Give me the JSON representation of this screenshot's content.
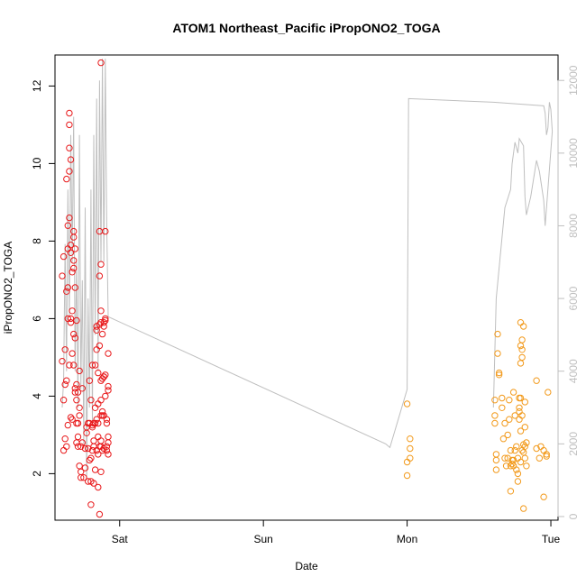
{
  "chart_data": {
    "type": "scatter",
    "title": "ATOM1 Northeast_Pacific iPropONO2_TOGA",
    "xlabel": "Date",
    "ylabel": "iPropONO2_TOGA",
    "x_ticks": [
      {
        "label": "Sat",
        "day": 0
      },
      {
        "label": "Sun",
        "day": 1
      },
      {
        "label": "Mon",
        "day": 2
      },
      {
        "label": "Tue",
        "day": 3
      }
    ],
    "xlim": [
      -0.45,
      3.05
    ],
    "ylim": [
      0.8,
      12.8
    ],
    "y_ticks": [
      2,
      4,
      6,
      8,
      10,
      12
    ],
    "y2lim": [
      -100,
      12700
    ],
    "y2_ticks": [
      0,
      2000,
      4000,
      6000,
      8000,
      10000,
      12000
    ],
    "grid": false,
    "colors": {
      "series_1": "#e8191b",
      "series_2": "#f29a1c",
      "altitude": "#bfbfbf"
    },
    "series": [
      {
        "points": [
          [
            -0.4,
            7.1
          ],
          [
            -0.4,
            4.9
          ],
          [
            -0.39,
            3.9
          ],
          [
            -0.39,
            2.6
          ],
          [
            -0.39,
            7.6
          ],
          [
            -0.38,
            2.9
          ],
          [
            -0.38,
            4.3
          ],
          [
            -0.38,
            5.2
          ],
          [
            -0.37,
            6.7
          ],
          [
            -0.37,
            9.6
          ],
          [
            -0.37,
            4.4
          ],
          [
            -0.37,
            2.7
          ],
          [
            -0.36,
            3.25
          ],
          [
            -0.36,
            6.8
          ],
          [
            -0.36,
            6.0
          ],
          [
            -0.36,
            8.4
          ],
          [
            -0.36,
            7.8
          ],
          [
            -0.35,
            4.8
          ],
          [
            -0.35,
            10.4
          ],
          [
            -0.35,
            9.8
          ],
          [
            -0.35,
            11.0
          ],
          [
            -0.35,
            11.3
          ],
          [
            -0.35,
            8.6
          ],
          [
            -0.34,
            7.7
          ],
          [
            -0.34,
            7.9
          ],
          [
            -0.34,
            10.1
          ],
          [
            -0.34,
            5.9
          ],
          [
            -0.34,
            6.0
          ],
          [
            -0.34,
            3.45
          ],
          [
            -0.33,
            3.4
          ],
          [
            -0.33,
            6.2
          ],
          [
            -0.33,
            5.1
          ],
          [
            -0.33,
            7.2
          ],
          [
            -0.32,
            7.5
          ],
          [
            -0.32,
            4.8
          ],
          [
            -0.32,
            5.6
          ],
          [
            -0.32,
            7.3
          ],
          [
            -0.32,
            8.1
          ],
          [
            -0.32,
            8.25
          ],
          [
            -0.31,
            7.8
          ],
          [
            -0.31,
            6.8
          ],
          [
            -0.31,
            5.5
          ],
          [
            -0.31,
            4.2
          ],
          [
            -0.31,
            4.1
          ],
          [
            -0.3,
            3.9
          ],
          [
            -0.3,
            3.3
          ],
          [
            -0.3,
            2.8
          ],
          [
            -0.3,
            5.95
          ],
          [
            -0.3,
            4.3
          ],
          [
            -0.29,
            2.7
          ],
          [
            -0.29,
            3.3
          ],
          [
            -0.29,
            4.1
          ],
          [
            -0.29,
            2.95
          ],
          [
            -0.28,
            2.2
          ],
          [
            -0.28,
            4.65
          ],
          [
            -0.28,
            3.7
          ],
          [
            -0.28,
            3.5
          ],
          [
            -0.27,
            2.7
          ],
          [
            -0.27,
            2.05
          ],
          [
            -0.27,
            1.9
          ],
          [
            -0.26,
            2.8
          ],
          [
            -0.26,
            4.2
          ],
          [
            -0.25,
            1.9
          ],
          [
            -0.24,
            2.65
          ],
          [
            -0.24,
            2.15
          ],
          [
            -0.23,
            3.2
          ],
          [
            -0.23,
            3.05
          ],
          [
            -0.22,
            2.65
          ],
          [
            -0.22,
            1.8
          ],
          [
            -0.22,
            3.3
          ],
          [
            -0.21,
            4.4
          ],
          [
            -0.21,
            2.35
          ],
          [
            -0.21,
            3.3
          ],
          [
            -0.2,
            1.2
          ],
          [
            -0.2,
            1.8
          ],
          [
            -0.2,
            2.4
          ],
          [
            -0.2,
            3.9
          ],
          [
            -0.19,
            3.2
          ],
          [
            -0.19,
            4.8
          ],
          [
            -0.19,
            2.6
          ],
          [
            -0.19,
            3.25
          ],
          [
            -0.18,
            2.85
          ],
          [
            -0.18,
            3.3
          ],
          [
            -0.18,
            1.75
          ],
          [
            -0.18,
            2.7
          ],
          [
            -0.17,
            3.3
          ],
          [
            -0.17,
            4.8
          ],
          [
            -0.17,
            2.1
          ],
          [
            -0.17,
            3.7
          ],
          [
            -0.16,
            5.8
          ],
          [
            -0.16,
            2.6
          ],
          [
            -0.16,
            3.4
          ],
          [
            -0.16,
            5.7
          ],
          [
            -0.16,
            5.2
          ],
          [
            -0.15,
            2.95
          ],
          [
            -0.15,
            3.8
          ],
          [
            -0.15,
            2.5
          ],
          [
            -0.15,
            1.65
          ],
          [
            -0.15,
            4.6
          ],
          [
            -0.15,
            3.3
          ],
          [
            -0.14,
            5.3
          ],
          [
            -0.14,
            2.7
          ],
          [
            -0.14,
            8.25
          ],
          [
            -0.14,
            7.1
          ],
          [
            -0.14,
            5.85
          ],
          [
            -0.14,
            0.95
          ],
          [
            -0.13,
            2.85
          ],
          [
            -0.13,
            3.9
          ],
          [
            -0.13,
            2.7
          ],
          [
            -0.13,
            4.4
          ],
          [
            -0.13,
            3.5
          ],
          [
            -0.13,
            2.05
          ],
          [
            -0.13,
            5.9
          ],
          [
            -0.13,
            7.4
          ],
          [
            -0.13,
            6.2
          ],
          [
            -0.13,
            12.6
          ],
          [
            -0.12,
            3.5
          ],
          [
            -0.12,
            4.45
          ],
          [
            -0.12,
            5.6
          ],
          [
            -0.12,
            3.6
          ],
          [
            -0.12,
            2.6
          ],
          [
            -0.11,
            4.5
          ],
          [
            -0.11,
            4.5
          ],
          [
            -0.11,
            5.8
          ],
          [
            -0.11,
            2.65
          ],
          [
            -0.11,
            3.5
          ],
          [
            -0.11,
            5.9
          ],
          [
            -0.1,
            8.25
          ],
          [
            -0.1,
            6.0
          ],
          [
            -0.1,
            4.0
          ],
          [
            -0.1,
            5.95
          ],
          [
            -0.1,
            4.55
          ],
          [
            -0.09,
            2.6
          ],
          [
            -0.09,
            3.4
          ],
          [
            -0.09,
            2.7
          ],
          [
            -0.09,
            3.3
          ],
          [
            -0.08,
            2.8
          ],
          [
            -0.08,
            2.95
          ],
          [
            -0.08,
            4.25
          ],
          [
            -0.08,
            2.5
          ],
          [
            -0.08,
            4.15
          ],
          [
            -0.08,
            5.1
          ]
        ]
      },
      {
        "points": [
          [
            2.0,
            3.8
          ],
          [
            2.0,
            2.3
          ],
          [
            2.0,
            1.95
          ],
          [
            2.02,
            2.4
          ],
          [
            2.02,
            2.65
          ],
          [
            2.02,
            2.9
          ],
          [
            2.61,
            3.9
          ],
          [
            2.61,
            3.5
          ],
          [
            2.61,
            3.3
          ],
          [
            2.62,
            2.5
          ],
          [
            2.62,
            2.35
          ],
          [
            2.62,
            2.1
          ],
          [
            2.63,
            5.6
          ],
          [
            2.63,
            5.1
          ],
          [
            2.64,
            4.6
          ],
          [
            2.64,
            4.55
          ],
          [
            2.66,
            3.7
          ],
          [
            2.66,
            3.95
          ],
          [
            2.67,
            2.9
          ],
          [
            2.68,
            3.3
          ],
          [
            2.68,
            2.4
          ],
          [
            2.69,
            2.2
          ],
          [
            2.7,
            3.0
          ],
          [
            2.7,
            2.4
          ],
          [
            2.71,
            3.4
          ],
          [
            2.71,
            3.9
          ],
          [
            2.72,
            2.6
          ],
          [
            2.72,
            2.2
          ],
          [
            2.72,
            1.55
          ],
          [
            2.73,
            2.25
          ],
          [
            2.73,
            2.35
          ],
          [
            2.74,
            2.35
          ],
          [
            2.74,
            4.1
          ],
          [
            2.74,
            2.2
          ],
          [
            2.75,
            3.5
          ],
          [
            2.75,
            2.6
          ],
          [
            2.76,
            2.1
          ],
          [
            2.76,
            2.7
          ],
          [
            2.77,
            2.0
          ],
          [
            2.77,
            2.4
          ],
          [
            2.77,
            1.8
          ],
          [
            2.78,
            3.95
          ],
          [
            2.78,
            3.7
          ],
          [
            2.78,
            3.6
          ],
          [
            2.78,
            3.4
          ],
          [
            2.79,
            2.3
          ],
          [
            2.79,
            3.1
          ],
          [
            2.79,
            3.95
          ],
          [
            2.79,
            5.3
          ],
          [
            2.79,
            5.9
          ],
          [
            2.79,
            4.85
          ],
          [
            2.8,
            5.0
          ],
          [
            2.8,
            5.45
          ],
          [
            2.8,
            5.2
          ],
          [
            2.8,
            2.6
          ],
          [
            2.8,
            3.5
          ],
          [
            2.81,
            2.75
          ],
          [
            2.81,
            1.1
          ],
          [
            2.81,
            2.55
          ],
          [
            2.81,
            5.8
          ],
          [
            2.82,
            3.2
          ],
          [
            2.82,
            3.85
          ],
          [
            2.82,
            2.7
          ],
          [
            2.82,
            2.4
          ],
          [
            2.83,
            2.2
          ],
          [
            2.83,
            2.8
          ],
          [
            2.9,
            4.4
          ],
          [
            2.9,
            2.65
          ],
          [
            2.92,
            2.4
          ],
          [
            2.93,
            2.7
          ],
          [
            2.95,
            1.4
          ],
          [
            2.95,
            2.6
          ],
          [
            2.97,
            2.45
          ],
          [
            2.97,
            2.5
          ],
          [
            2.98,
            4.1
          ]
        ]
      }
    ],
    "altitude_line": {
      "y_axis": "right",
      "points": [
        [
          -0.4,
          3000
        ],
        [
          -0.39,
          3800
        ],
        [
          -0.38,
          7500
        ],
        [
          -0.37,
          4000
        ],
        [
          -0.36,
          9000
        ],
        [
          -0.35,
          5500
        ],
        [
          -0.34,
          10500
        ],
        [
          -0.33,
          7000
        ],
        [
          -0.32,
          11000
        ],
        [
          -0.31,
          4000
        ],
        [
          -0.3,
          7000
        ],
        [
          -0.29,
          3000
        ],
        [
          -0.28,
          10500
        ],
        [
          -0.27,
          3500
        ],
        [
          -0.26,
          6500
        ],
        [
          -0.25,
          2000
        ],
        [
          -0.24,
          8500
        ],
        [
          -0.23,
          1000
        ],
        [
          -0.22,
          6000
        ],
        [
          -0.21,
          3000
        ],
        [
          -0.2,
          9000
        ],
        [
          -0.19,
          2500
        ],
        [
          -0.18,
          10500
        ],
        [
          -0.17,
          5000
        ],
        [
          -0.16,
          11500
        ],
        [
          -0.15,
          4000
        ],
        [
          -0.14,
          12000
        ],
        [
          -0.13,
          7000
        ],
        [
          -0.12,
          12600
        ],
        [
          -0.11,
          7000
        ],
        [
          -0.1,
          12600
        ],
        [
          -0.09,
          8000
        ],
        [
          -0.08,
          5500
        ],
        [
          1.85,
          2000
        ],
        [
          1.88,
          1900
        ],
        [
          2.0,
          3500
        ],
        [
          2.01,
          11500
        ],
        [
          2.6,
          11400
        ],
        [
          2.95,
          11300
        ],
        [
          2.96,
          11100
        ],
        [
          2.97,
          10500
        ],
        [
          2.98,
          10700
        ],
        [
          2.99,
          11400
        ],
        [
          3.0,
          11200
        ],
        [
          3.01,
          10600
        ],
        [
          2.96,
          8000
        ],
        [
          2.95,
          8700
        ],
        [
          2.92,
          9500
        ],
        [
          2.9,
          9800
        ],
        [
          2.88,
          9300
        ],
        [
          2.86,
          8800
        ],
        [
          2.83,
          8300
        ],
        [
          2.82,
          8800
        ],
        [
          2.81,
          10200
        ],
        [
          2.78,
          10400
        ],
        [
          2.77,
          10000
        ],
        [
          2.75,
          10300
        ],
        [
          2.73,
          9700
        ],
        [
          2.72,
          9000
        ],
        [
          2.68,
          8500
        ],
        [
          2.62,
          6000
        ],
        [
          2.6,
          3000
        ]
      ]
    }
  }
}
